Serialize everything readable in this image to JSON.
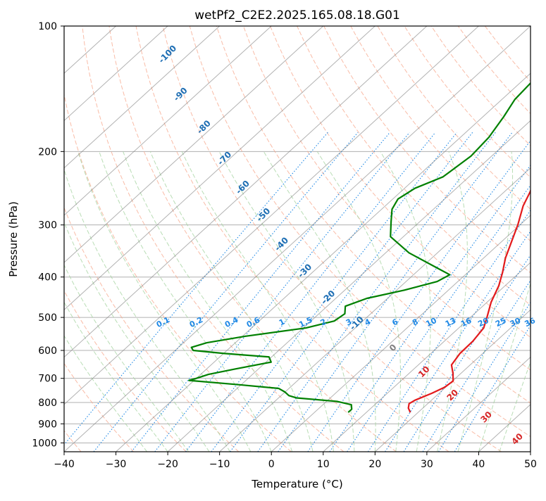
{
  "chart_data": {
    "type": "skew-t",
    "title": "wetPf2_C2E2.2025.165.08.18.G01",
    "xlabel": "Temperature (°C)",
    "ylabel": "Pressure (hPa)",
    "xlim": [
      -40,
      50
    ],
    "ylim": [
      1050,
      100
    ],
    "y_scale": "log",
    "grid": true,
    "x_ticks": [
      -40,
      -30,
      -20,
      -10,
      0,
      10,
      20,
      30,
      40,
      50
    ],
    "x_tick_labels": [
      "−40",
      "−30",
      "−20",
      "−10",
      "0",
      "10",
      "20",
      "30",
      "40",
      "50"
    ],
    "y_ticks": [
      100,
      200,
      300,
      400,
      500,
      600,
      700,
      800,
      900,
      1000
    ],
    "y_tick_labels": [
      "100",
      "200",
      "300",
      "400",
      "500",
      "600",
      "700",
      "800",
      "900",
      "1000"
    ],
    "series": [
      {
        "role": "temperature",
        "color": "#e31a1c",
        "points": [
          {
            "p": 845,
            "t": 18.5
          },
          {
            "p": 825,
            "t": 17.2
          },
          {
            "p": 805,
            "t": 16.4
          },
          {
            "p": 790,
            "t": 16.8
          },
          {
            "p": 760,
            "t": 18.6
          },
          {
            "p": 735,
            "t": 19.8
          },
          {
            "p": 710,
            "t": 20.1
          },
          {
            "p": 680,
            "t": 18.4
          },
          {
            "p": 650,
            "t": 16.4
          },
          {
            "p": 610,
            "t": 15.6
          },
          {
            "p": 570,
            "t": 15.5
          },
          {
            "p": 530,
            "t": 14.8
          },
          {
            "p": 500,
            "t": 13.2
          },
          {
            "p": 460,
            "t": 10.8
          },
          {
            "p": 420,
            "t": 8.8
          },
          {
            "p": 390,
            "t": 6.7
          },
          {
            "p": 360,
            "t": 4.2
          },
          {
            "p": 330,
            "t": 2.0
          },
          {
            "p": 300,
            "t": -0.4
          },
          {
            "p": 270,
            "t": -3.4
          },
          {
            "p": 250,
            "t": -5.0
          },
          {
            "p": 225,
            "t": -7.7
          },
          {
            "p": 200,
            "t": -11.0
          },
          {
            "p": 180,
            "t": -14.0
          },
          {
            "p": 165,
            "t": -15.8
          },
          {
            "p": 150,
            "t": -18.1
          },
          {
            "p": 140,
            "t": -20.8
          },
          {
            "p": 130,
            "t": -23.6
          },
          {
            "p": 120,
            "t": -26.6
          },
          {
            "p": 115,
            "t": -27.6
          },
          {
            "p": 110,
            "t": -27.5
          },
          {
            "p": 105,
            "t": -27.2
          },
          {
            "p": 100,
            "t": -27.6
          }
        ]
      },
      {
        "role": "dewpoint",
        "color": "#008000",
        "points": [
          {
            "p": 845,
            "t": 6.5
          },
          {
            "p": 830,
            "t": 6.5
          },
          {
            "p": 810,
            "t": 5.5
          },
          {
            "p": 795,
            "t": 2.0
          },
          {
            "p": 780,
            "t": -6.5
          },
          {
            "p": 770,
            "t": -8.5
          },
          {
            "p": 755,
            "t": -10.0
          },
          {
            "p": 740,
            "t": -12.0
          },
          {
            "p": 725,
            "t": -20.5
          },
          {
            "p": 708,
            "t": -31.0
          },
          {
            "p": 700,
            "t": -30.0
          },
          {
            "p": 685,
            "t": -28.5
          },
          {
            "p": 665,
            "t": -24.5
          },
          {
            "p": 640,
            "t": -19.0
          },
          {
            "p": 622,
            "t": -20.5
          },
          {
            "p": 610,
            "t": -30.0
          },
          {
            "p": 600,
            "t": -36.5
          },
          {
            "p": 590,
            "t": -37.5
          },
          {
            "p": 575,
            "t": -35.5
          },
          {
            "p": 555,
            "t": -29.5
          },
          {
            "p": 530,
            "t": -19.5
          },
          {
            "p": 510,
            "t": -15.5
          },
          {
            "p": 490,
            "t": -15.0
          },
          {
            "p": 470,
            "t": -16.5
          },
          {
            "p": 450,
            "t": -14.0
          },
          {
            "p": 430,
            "t": -8.5
          },
          {
            "p": 410,
            "t": -4.0
          },
          {
            "p": 395,
            "t": -3.0
          },
          {
            "p": 380,
            "t": -7.0
          },
          {
            "p": 350,
            "t": -15.5
          },
          {
            "p": 320,
            "t": -22.5
          },
          {
            "p": 295,
            "t": -25.5
          },
          {
            "p": 275,
            "t": -28.0
          },
          {
            "p": 260,
            "t": -29.0
          },
          {
            "p": 245,
            "t": -28.0
          },
          {
            "p": 230,
            "t": -25.0
          },
          {
            "p": 205,
            "t": -24.0
          },
          {
            "p": 185,
            "t": -24.5
          },
          {
            "p": 165,
            "t": -26.0
          },
          {
            "p": 150,
            "t": -27.5
          },
          {
            "p": 135,
            "t": -28.0
          },
          {
            "p": 120,
            "t": -30.0
          },
          {
            "p": 110,
            "t": -35.0
          },
          {
            "p": 104,
            "t": -36.5
          },
          {
            "p": 100,
            "t": -36.6
          }
        ]
      }
    ],
    "dry_adiabat_labels": [
      {
        "text": "-100",
        "x": -20.0,
        "p": 117.0
      },
      {
        "text": "-90",
        "x": -17.5,
        "p": 146.0
      },
      {
        "text": "-80",
        "x": -13.0,
        "p": 175.0
      },
      {
        "text": "-70",
        "x": -9.0,
        "p": 208.0
      },
      {
        "text": "-60",
        "x": -5.5,
        "p": 244.0
      },
      {
        "text": "-50",
        "x": -1.5,
        "p": 284.0
      },
      {
        "text": "-40",
        "x": 2.0,
        "p": 334.0
      },
      {
        "text": "-30",
        "x": 6.5,
        "p": 387.0
      },
      {
        "text": "-20",
        "x": 11.0,
        "p": 448.0
      },
      {
        "text": "-10",
        "x": 16.5,
        "p": 517.0
      },
      {
        "text": "0",
        "x": 23.5,
        "p": 592.0
      },
      {
        "text": "10",
        "x": 29.5,
        "p": 676.0
      },
      {
        "text": "20",
        "x": 35.0,
        "p": 769.0
      },
      {
        "text": "30",
        "x": 41.5,
        "p": 868.0
      },
      {
        "text": "40",
        "x": 47.5,
        "p": 980.0
      }
    ],
    "mixing_ratio_labels": [
      "0.1",
      "0.2",
      "0.4",
      "0.6",
      "1",
      "1.5",
      "2",
      "3",
      "4",
      "6",
      "8",
      "10",
      "13",
      "16",
      "20",
      "25",
      "30",
      "36"
    ],
    "mixing_ratio_label_pressure": 520,
    "colors": {
      "temperature": "#e31a1c",
      "dewpoint": "#008000",
      "grid": "#b0b0b0",
      "isotherm": "#808080",
      "dry_adiabat": "#f7a58a",
      "moist_adiabat": "#a8d5a2",
      "mixing_ratio": "#1e88e5",
      "cold_label": "#1f6fb4",
      "zero_label": "#808080",
      "warm_label": "#d62728",
      "mixing_label": "#1e88e5",
      "theta_reference": "#d4bc96"
    }
  }
}
